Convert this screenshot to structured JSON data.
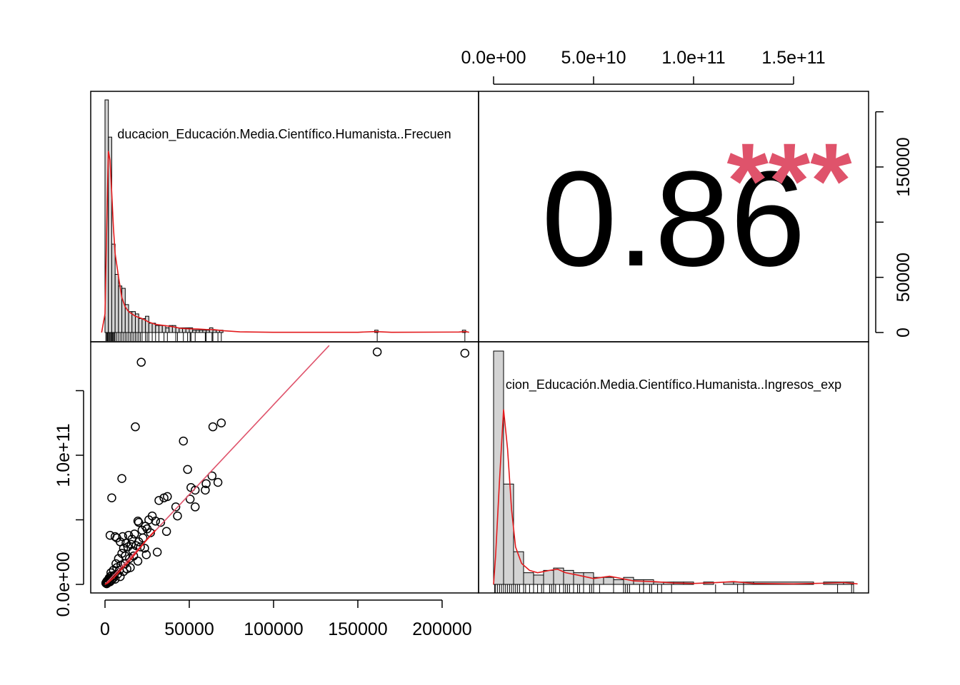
{
  "chart_data": {
    "type": "scatter",
    "variables": [
      "Educacion_Educación.Media.Científico.Humanista..Frecuencia",
      "Educacion_Educación.Media.Científico.Humanista..Ingresos_expandidos"
    ],
    "diag_label_frecuencia": "ducacion_Educación.Media.Científico.Humanista..Frecuen",
    "diag_label_ingresos": "cion_Educación.Media.Científico.Humanista..Ingresos_exp",
    "correlation_value": "0.86",
    "correlation_stars": "***",
    "colors": {
      "accent": "#DF536B",
      "fit_line": "#DF536B",
      "hist_fill": "#d3d3d3",
      "points": "#000000"
    },
    "x_axis_bottom": {
      "ticks": [
        0,
        50000,
        100000,
        150000,
        200000
      ],
      "tick_labels": [
        "0",
        "50000",
        "100000",
        "150000",
        "200000"
      ],
      "range": [
        0,
        215000
      ]
    },
    "x_axis_top": {
      "ticks": [
        0,
        50000000000,
        100000000000,
        150000000000
      ],
      "tick_labels": [
        "0.0e+00",
        "5.0e+10",
        "1.0e+11",
        "1.5e+11"
      ],
      "range": [
        0,
        185000000000
      ]
    },
    "y_axis_left": {
      "ticks": [
        0,
        100000000000
      ],
      "tick_labels": [
        "0.0e+00",
        "1.0e+11"
      ],
      "minor_ticks": [
        50000000000,
        150000000000
      ],
      "range": [
        0,
        185000000000
      ]
    },
    "y_axis_right": {
      "ticks": [
        0,
        50000,
        150000
      ],
      "tick_labels": [
        "0",
        "50000",
        "150000"
      ],
      "minor_ticks": [
        100000,
        200000
      ],
      "range": [
        0,
        215000
      ]
    },
    "scatter_points": [
      [
        161500,
        180000000000
      ],
      [
        213500,
        179000000000
      ],
      [
        21500,
        172000000000
      ],
      [
        18000,
        122000000000
      ],
      [
        64000,
        122000000000
      ],
      [
        69000,
        125000000000
      ],
      [
        46500,
        111000000000
      ],
      [
        49000,
        89000000000
      ],
      [
        63500,
        84000000000
      ],
      [
        67000,
        79000000000
      ],
      [
        60000,
        78000000000
      ],
      [
        59500,
        73000000000
      ],
      [
        51000,
        75000000000
      ],
      [
        53500,
        73000000000
      ],
      [
        37000,
        68000000000
      ],
      [
        35000,
        67000000000
      ],
      [
        32000,
        65000000000
      ],
      [
        4000,
        67000000000
      ],
      [
        10000,
        82000000000
      ],
      [
        42000,
        60000000000
      ],
      [
        43000,
        53000000000
      ],
      [
        53500,
        60000000000
      ],
      [
        50500,
        66000000000
      ],
      [
        33000,
        48000000000
      ],
      [
        28000,
        53000000000
      ],
      [
        26000,
        50000000000
      ],
      [
        19500,
        49000000000
      ],
      [
        20000,
        48000000000
      ],
      [
        30000,
        49000000000
      ],
      [
        24000,
        45000000000
      ],
      [
        25000,
        43000000000
      ],
      [
        36500,
        41000000000
      ],
      [
        22000,
        42000000000
      ],
      [
        27000,
        40000000000
      ],
      [
        17500,
        39000000000
      ],
      [
        3000,
        38000000000
      ],
      [
        6000,
        37000000000
      ],
      [
        7000,
        36000000000
      ],
      [
        10500,
        37000000000
      ],
      [
        14000,
        38000000000
      ],
      [
        16000,
        35000000000
      ],
      [
        9000,
        33000000000
      ],
      [
        12500,
        32000000000
      ],
      [
        15500,
        31000000000
      ],
      [
        18500,
        30000000000
      ],
      [
        21000,
        29000000000
      ],
      [
        23500,
        28000000000
      ],
      [
        31000,
        25000000000
      ],
      [
        24500,
        23000000000
      ],
      [
        13500,
        29000000000
      ],
      [
        11000,
        28000000000
      ],
      [
        10000,
        24000000000
      ],
      [
        12000,
        22000000000
      ],
      [
        14500,
        20000000000
      ],
      [
        8000,
        20000000000
      ],
      [
        6500,
        16000000000
      ],
      [
        9500,
        15000000000
      ],
      [
        15000,
        13000000000
      ],
      [
        13000,
        12000000000
      ],
      [
        11000,
        10000000000
      ],
      [
        5000,
        11000000000
      ],
      [
        3500,
        9000000000
      ],
      [
        7500,
        8000000000
      ],
      [
        4500,
        6000000000
      ],
      [
        2500,
        5000000000
      ],
      [
        6000,
        4000000000
      ],
      [
        1500,
        3000000000
      ],
      [
        3000,
        2000000000
      ],
      [
        500,
        1000000000
      ],
      [
        1000,
        500000000
      ],
      [
        2000,
        1500000000
      ],
      [
        4000,
        3500000000
      ],
      [
        5500,
        7000000000
      ],
      [
        8500,
        11000000000
      ],
      [
        9000,
        6000000000
      ],
      [
        17000,
        22000000000
      ],
      [
        19500,
        18000000000
      ],
      [
        16500,
        26000000000
      ],
      [
        20000,
        33000000000
      ],
      [
        22500,
        36000000000
      ],
      [
        12000,
        16000000000
      ],
      [
        7000,
        13000000000
      ],
      [
        3500,
        6500000000
      ],
      [
        1200,
        2500000000
      ],
      [
        2200,
        3800000000
      ],
      [
        800,
        1800000000
      ],
      [
        5000,
        5000000000
      ]
    ],
    "fit_line": [
      [
        0,
        0
      ],
      [
        133000,
        185000000000
      ]
    ],
    "lowess_line": [
      [
        0,
        0
      ],
      [
        2000,
        1500000000
      ],
      [
        5000,
        5000000000
      ],
      [
        10000,
        12000000000
      ],
      [
        15000,
        19000000000
      ],
      [
        20000,
        27000000000
      ],
      [
        25000,
        35000000000
      ],
      [
        30000,
        42000000000
      ]
    ],
    "hist_frecuencia": {
      "bin_edges": [
        0,
        2000,
        4000,
        6000,
        8000,
        10000,
        12000,
        14000,
        16000,
        18000,
        20000,
        22000,
        24000,
        26000,
        28000,
        30000,
        32000,
        34000,
        36000,
        38000,
        40000,
        42000,
        44000,
        46000,
        48000,
        50000,
        52000,
        54000,
        56000,
        58000,
        60000,
        62000,
        64000,
        66000,
        68000,
        70000,
        160000,
        162000,
        212000,
        214000
      ],
      "counts": [
        100,
        84,
        38,
        25,
        20,
        19,
        12,
        9,
        9,
        8,
        6,
        6,
        7,
        4,
        4,
        3,
        3,
        3,
        2,
        3,
        3,
        2,
        2,
        2,
        2,
        2,
        1,
        1,
        1,
        1,
        1,
        2,
        1,
        1,
        1,
        0,
        1,
        0,
        1
      ],
      "ymax": 100
    },
    "hist_ingresos": {
      "bin_edges": [
        0,
        5000000000,
        10000000000,
        15000000000,
        20000000000,
        25000000000,
        30000000000,
        35000000000,
        40000000000,
        45000000000,
        50000000000,
        55000000000,
        60000000000,
        65000000000,
        70000000000,
        75000000000,
        80000000000,
        85000000000,
        90000000000,
        95000000000,
        100000000000,
        105000000000,
        110000000000,
        115000000000,
        120000000000,
        125000000000,
        130000000000,
        160000000000,
        165000000000,
        175000000000,
        180000000000
      ],
      "counts": [
        100,
        43,
        14,
        5,
        4,
        6,
        7,
        6,
        5,
        5,
        3,
        3,
        2,
        3,
        2,
        2,
        1,
        1,
        1,
        1,
        0,
        1,
        0,
        1,
        1,
        1,
        1,
        0,
        1,
        1
      ],
      "ymax": 100
    },
    "density_frecuencia": [
      [
        -2000,
        0
      ],
      [
        0,
        8
      ],
      [
        1000,
        45
      ],
      [
        2000,
        78
      ],
      [
        3000,
        74
      ],
      [
        4000,
        60
      ],
      [
        5000,
        45
      ],
      [
        6000,
        34
      ],
      [
        8000,
        24
      ],
      [
        10000,
        15
      ],
      [
        12000,
        11
      ],
      [
        14000,
        9
      ],
      [
        18000,
        7
      ],
      [
        22000,
        6
      ],
      [
        26000,
        4.5
      ],
      [
        30000,
        3.5
      ],
      [
        35000,
        3
      ],
      [
        40000,
        2.5
      ],
      [
        45000,
        1.8
      ],
      [
        50000,
        1.6
      ],
      [
        55000,
        1.5
      ],
      [
        60000,
        1.3
      ],
      [
        65000,
        1.2
      ],
      [
        70000,
        0.8
      ],
      [
        80000,
        0.3
      ],
      [
        100000,
        0.1
      ],
      [
        150000,
        0.1
      ],
      [
        160000,
        0.4
      ],
      [
        170000,
        0.1
      ],
      [
        210000,
        0.2
      ],
      [
        214000,
        0.4
      ],
      [
        216000,
        0.1
      ]
    ],
    "density_ingresos": [
      [
        0,
        0
      ],
      [
        1000000000,
        12
      ],
      [
        3000000000,
        45
      ],
      [
        5000000000,
        75
      ],
      [
        7000000000,
        58
      ],
      [
        9000000000,
        32
      ],
      [
        11000000000,
        16
      ],
      [
        14000000000,
        9
      ],
      [
        18000000000,
        6
      ],
      [
        22000000000,
        5
      ],
      [
        28000000000,
        6
      ],
      [
        32000000000,
        6.5
      ],
      [
        36000000000,
        5
      ],
      [
        42000000000,
        4
      ],
      [
        50000000000,
        2.5
      ],
      [
        58000000000,
        3.5
      ],
      [
        64000000000,
        2.5
      ],
      [
        70000000000,
        1.5
      ],
      [
        80000000000,
        1.2
      ],
      [
        90000000000,
        0.6
      ],
      [
        100000000000,
        0.4
      ],
      [
        110000000000,
        0.7
      ],
      [
        120000000000,
        1.2
      ],
      [
        130000000000,
        0.4
      ],
      [
        150000000000,
        0.2
      ],
      [
        165000000000,
        0.5
      ],
      [
        175000000000,
        0.8
      ],
      [
        182000000000,
        0.2
      ]
    ],
    "rug_frecuencia": [
      500,
      1000,
      1500,
      2000,
      2500,
      3000,
      3500,
      4000,
      4500,
      5000,
      5500,
      6000,
      7000,
      8000,
      9000,
      10000,
      11000,
      12000,
      13000,
      14000,
      15000,
      16000,
      17000,
      18000,
      19000,
      20000,
      21000,
      22000,
      24000,
      25000,
      26000,
      28000,
      30000,
      32000,
      35000,
      37000,
      42000,
      43000,
      46500,
      49000,
      50500,
      51000,
      53500,
      59500,
      60000,
      63500,
      64000,
      67000,
      69000,
      161500,
      213500
    ],
    "rug_ingresos": [
      500000000,
      1000000000,
      2000000000,
      3000000000,
      4000000000,
      5000000000,
      6000000000,
      7000000000,
      8000000000,
      9000000000,
      10000000000,
      11000000000,
      12000000000,
      13000000000,
      15000000000,
      16000000000,
      18000000000,
      20000000000,
      22000000000,
      24000000000,
      25000000000,
      28000000000,
      29000000000,
      30000000000,
      31000000000,
      33000000000,
      35000000000,
      36000000000,
      37000000000,
      38000000000,
      40000000000,
      42000000000,
      43000000000,
      45000000000,
      48000000000,
      49000000000,
      50000000000,
      53000000000,
      60000000000,
      65000000000,
      66000000000,
      67000000000,
      68000000000,
      73000000000,
      75000000000,
      78000000000,
      79000000000,
      82000000000,
      84000000000,
      89000000000,
      111000000000,
      122000000000,
      125000000000,
      172000000000,
      179000000000,
      180000000000
    ]
  }
}
